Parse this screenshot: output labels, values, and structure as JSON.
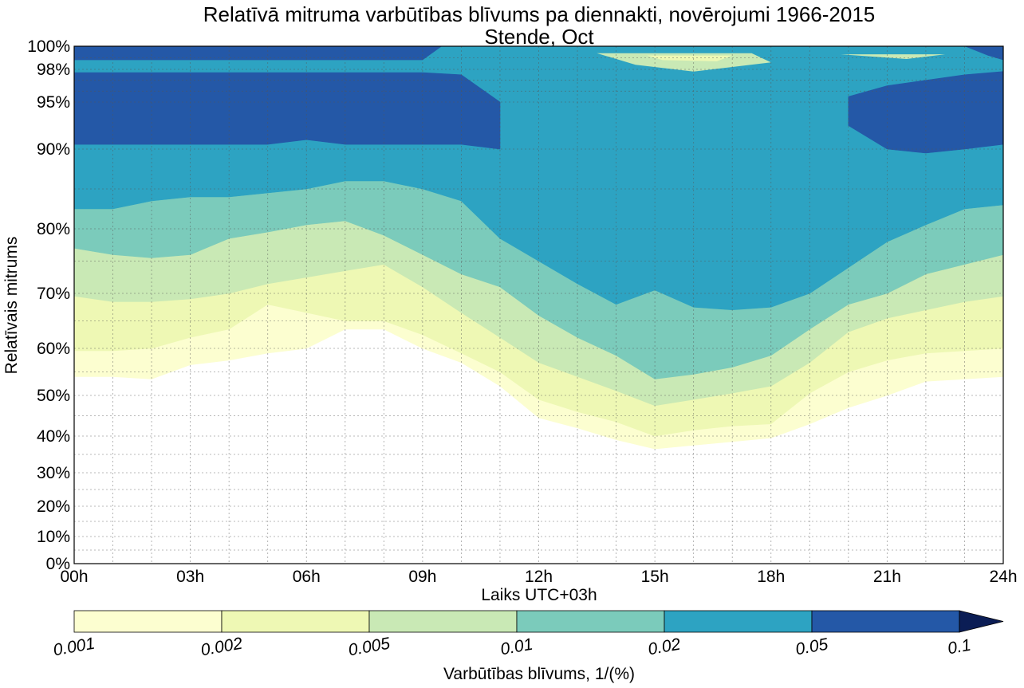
{
  "chart_data": {
    "type": "contour",
    "title": "Relatīvā mitruma varbūtības blīvums pa diennakti, novērojumi 1966-2015",
    "subtitle": "Stende, Oct",
    "xlabel": "Laiks UTC+03h",
    "ylabel": "Relatīvais mitrums",
    "x_ticks": [
      "00h",
      "03h",
      "06h",
      "09h",
      "12h",
      "15h",
      "18h",
      "21h",
      "24h"
    ],
    "y_ticks": [
      "0%",
      "10%",
      "20%",
      "30%",
      "40%",
      "50%",
      "60%",
      "70%",
      "80%",
      "90%",
      "95%",
      "98%",
      "100%"
    ],
    "y_scale": "nonlinear (compressed at low humidity, expanded near 100%)",
    "xlim": [
      0,
      24
    ],
    "ylim": [
      0,
      100
    ],
    "grid": true,
    "colorbar": {
      "label": "Varbūtības blīvums, 1/(%)",
      "ticks": [
        "0.001",
        "0.002",
        "0.005",
        "0.01",
        "0.02",
        "0.05",
        "0.1"
      ],
      "levels": [
        0.001,
        0.002,
        0.005,
        0.01,
        0.02,
        0.05,
        0.1
      ],
      "colors": [
        "#fcfed0",
        "#eef8b4",
        "#c9e9b5",
        "#7bcbbb",
        "#2da3c2",
        "#2458a7",
        "#0b1d55"
      ],
      "extend": "max",
      "orientation": "horizontal",
      "position": "bottom"
    },
    "contour_bounds": {
      "x_hours": [
        0,
        1,
        2,
        3,
        4,
        5,
        6,
        7,
        8,
        9,
        10,
        11,
        12,
        13,
        14,
        15,
        16,
        17,
        18,
        19,
        20,
        21,
        22,
        23,
        24
      ],
      "density_ge_0.001_lower": [
        54,
        54,
        53.5,
        56.5,
        57.5,
        59,
        60,
        63.5,
        63.5,
        60,
        57,
        52,
        44.5,
        42,
        39,
        36.5,
        37.5,
        38.5,
        39.5,
        43,
        47,
        50,
        53,
        53.5,
        54
      ],
      "density_ge_0.002_lower": [
        59.5,
        59.5,
        60,
        62,
        63.5,
        68,
        66.5,
        65,
        65,
        62.5,
        59,
        55,
        49,
        46,
        43.5,
        40,
        41.5,
        42.5,
        43,
        50.5,
        55,
        57.5,
        59,
        59.5,
        60
      ],
      "density_ge_0.005_lower": [
        69.5,
        68.5,
        68.5,
        69,
        70,
        71.5,
        72.5,
        73.5,
        74.5,
        71,
        66.5,
        62,
        57,
        54,
        51,
        47.5,
        49,
        50.5,
        52,
        57,
        63,
        65.5,
        67,
        68.5,
        69.5
      ],
      "density_ge_0.01_lower": [
        77,
        76,
        75.5,
        76,
        78.5,
        79.5,
        80.5,
        81,
        79,
        76,
        73,
        71,
        66,
        62,
        58.5,
        53.5,
        54.5,
        56,
        58.5,
        63.5,
        68,
        70,
        73,
        74.5,
        76
      ],
      "density_ge_0.02_lower": [
        82.5,
        82.5,
        83.5,
        84,
        84,
        84.5,
        85,
        86,
        86,
        85,
        83.5,
        78.5,
        75,
        71.5,
        68,
        70.5,
        67.5,
        67,
        67.5,
        70,
        74,
        78,
        80.5,
        82.5,
        83
      ],
      "density_ge_0.05_lower": [
        90.5,
        90.5,
        90.5,
        90.5,
        90.5,
        90.5,
        91,
        90.5,
        90.5,
        90.5,
        90.5,
        90,
        null,
        null,
        null,
        null,
        null,
        null,
        null,
        null,
        92.5,
        90,
        89.5,
        90,
        90.5
      ],
      "density_ge_0.05_upper": [
        97.7,
        97.7,
        97.7,
        97.7,
        97.7,
        97.7,
        97.7,
        97.7,
        97.7,
        97.7,
        97.5,
        95,
        null,
        null,
        null,
        null,
        null,
        null,
        null,
        null,
        95.5,
        96.5,
        97,
        97.5,
        97.8
      ],
      "upper_band_0.05_ceiling": [
        98.8,
        98.8,
        98.8,
        98.8,
        98.8,
        98.8,
        98.8,
        98.8,
        98.8,
        98.8,
        98.8
      ]
    }
  }
}
